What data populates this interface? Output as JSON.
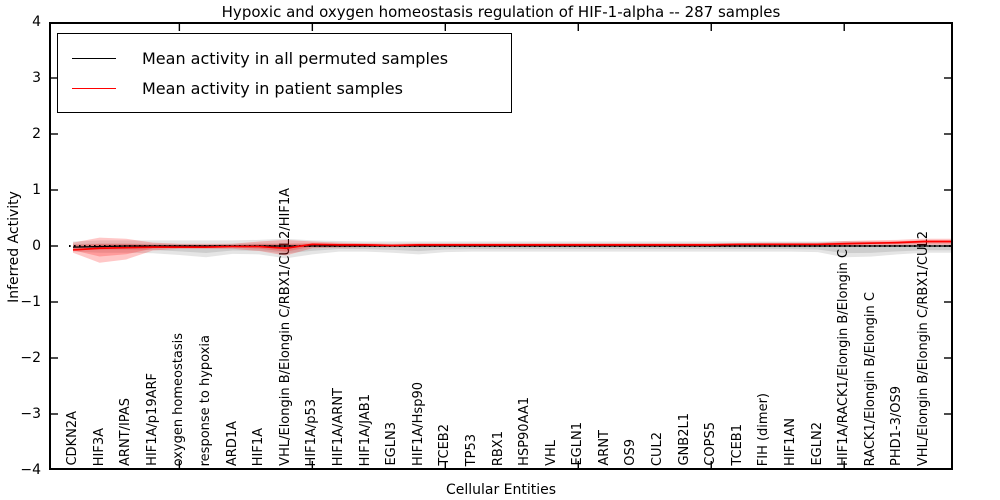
{
  "chart_data": {
    "type": "line",
    "title": "Hypoxic and oxygen homeostasis regulation of HIF-1-alpha -- 287 samples",
    "xlabel": "Cellular Entities",
    "ylabel": "Inferred Activity",
    "ylim": [
      -4,
      4
    ],
    "yticks": [
      "4",
      "3",
      "2",
      "1",
      "0",
      "−1",
      "−2",
      "−3",
      "−4"
    ],
    "ytick_values": [
      4,
      3,
      2,
      1,
      0,
      -1,
      -2,
      -3,
      -4
    ],
    "x_major_tick_positions": [
      5,
      10,
      15,
      20,
      25,
      30
    ],
    "grid": false,
    "legend_position": "upper left",
    "legend": [
      {
        "label": "Mean activity in all permuted samples",
        "color": "#000000"
      },
      {
        "label": "Mean activity in patient samples",
        "color": "#ff0000"
      }
    ],
    "zero_line": 0,
    "categories": [
      "CDKN2A",
      "HIF3A",
      "ARNT/IPAS",
      "HIF1A/p19ARF",
      "oxygen homeostasis",
      "response to hypoxia",
      "ARD1A",
      "HIF1A",
      "VHL/Elongin B/Elongin C/RBX1/CUL2/HIF1A",
      "HIF1A/p53",
      "HIF1A/ARNT",
      "HIF1A/JAB1",
      "EGLN3",
      "HIF1A/Hsp90",
      "TCEB2",
      "TP53",
      "RBX1",
      "HSP90AA1",
      "VHL",
      "EGLN1",
      "ARNT",
      "OS9",
      "CUL2",
      "GNB2L1",
      "COPS5",
      "TCEB1",
      "FIH (dimer)",
      "HIF1AN",
      "EGLN2",
      "HIF1A/RACK1/Elongin B/Elongin C",
      "RACK1/Elongin B/Elongin C",
      "PHD1-3/OS9",
      "VHL/Elongin B/Elongin C/RBX1/CUL2"
    ],
    "series": [
      {
        "name": "Mean activity in all permuted samples",
        "color": "#000000",
        "values": [
          -0.02,
          -0.01,
          0,
          0,
          0,
          0,
          0,
          0,
          0,
          0,
          0,
          0,
          0,
          0,
          0,
          0,
          0,
          0,
          0,
          0,
          0,
          0,
          0,
          0,
          0,
          0,
          0,
          0,
          0,
          0,
          0,
          0,
          0
        ]
      },
      {
        "name": "Mean activity in patient samples",
        "color": "#ff0000",
        "values": [
          -0.07,
          -0.04,
          -0.03,
          -0.02,
          -0.02,
          -0.02,
          -0.01,
          -0.01,
          -0.04,
          0.03,
          0.02,
          0.02,
          0.01,
          0.02,
          0.02,
          0.02,
          0.02,
          0.02,
          0.02,
          0.02,
          0.02,
          0.02,
          0.02,
          0.02,
          0.02,
          0.03,
          0.03,
          0.03,
          0.03,
          0.04,
          0.05,
          0.06,
          0.08
        ]
      }
    ],
    "bands": [
      {
        "name": "permuted-samples-range",
        "color": "rgba(0,0,0,0.10)",
        "upper": [
          0.08,
          0.1,
          0.1,
          0.1,
          0.1,
          0.1,
          0.1,
          0.11,
          0.13,
          0.1,
          0.09,
          0.08,
          0.08,
          0.08,
          0.08,
          0.08,
          0.08,
          0.08,
          0.08,
          0.08,
          0.08,
          0.08,
          0.08,
          0.08,
          0.08,
          0.08,
          0.08,
          0.08,
          0.08,
          0.09,
          0.08,
          0.07,
          0.06
        ],
        "lower": [
          -0.1,
          -0.12,
          -0.12,
          -0.13,
          -0.16,
          -0.2,
          -0.14,
          -0.15,
          -0.22,
          -0.15,
          -0.1,
          -0.1,
          -0.12,
          -0.15,
          -0.11,
          -0.1,
          -0.1,
          -0.1,
          -0.1,
          -0.1,
          -0.1,
          -0.1,
          -0.1,
          -0.1,
          -0.1,
          -0.1,
          -0.1,
          -0.1,
          -0.11,
          -0.2,
          -0.19,
          -0.15,
          -0.12
        ]
      },
      {
        "name": "patient-samples-range",
        "color": "rgba(255,0,0,0.22)",
        "upper": [
          0.06,
          0.15,
          0.13,
          0.06,
          0.04,
          0.04,
          0.04,
          0.08,
          0.11,
          0.08,
          0.06,
          0.05,
          0.04,
          0.05,
          0.05,
          0.05,
          0.05,
          0.05,
          0.05,
          0.05,
          0.05,
          0.05,
          0.05,
          0.05,
          0.05,
          0.05,
          0.06,
          0.06,
          0.06,
          0.09,
          0.1,
          0.11,
          0.13
        ],
        "lower": [
          -0.12,
          -0.3,
          -0.24,
          -0.08,
          -0.05,
          -0.05,
          -0.05,
          -0.09,
          -0.17,
          -0.04,
          -0.03,
          -0.02,
          -0.02,
          -0.02,
          -0.01,
          -0.01,
          -0.01,
          -0.01,
          0,
          0,
          0,
          0,
          0,
          0,
          0,
          0,
          0,
          0,
          0,
          0,
          0.01,
          0.01,
          0.02
        ]
      }
    ]
  }
}
